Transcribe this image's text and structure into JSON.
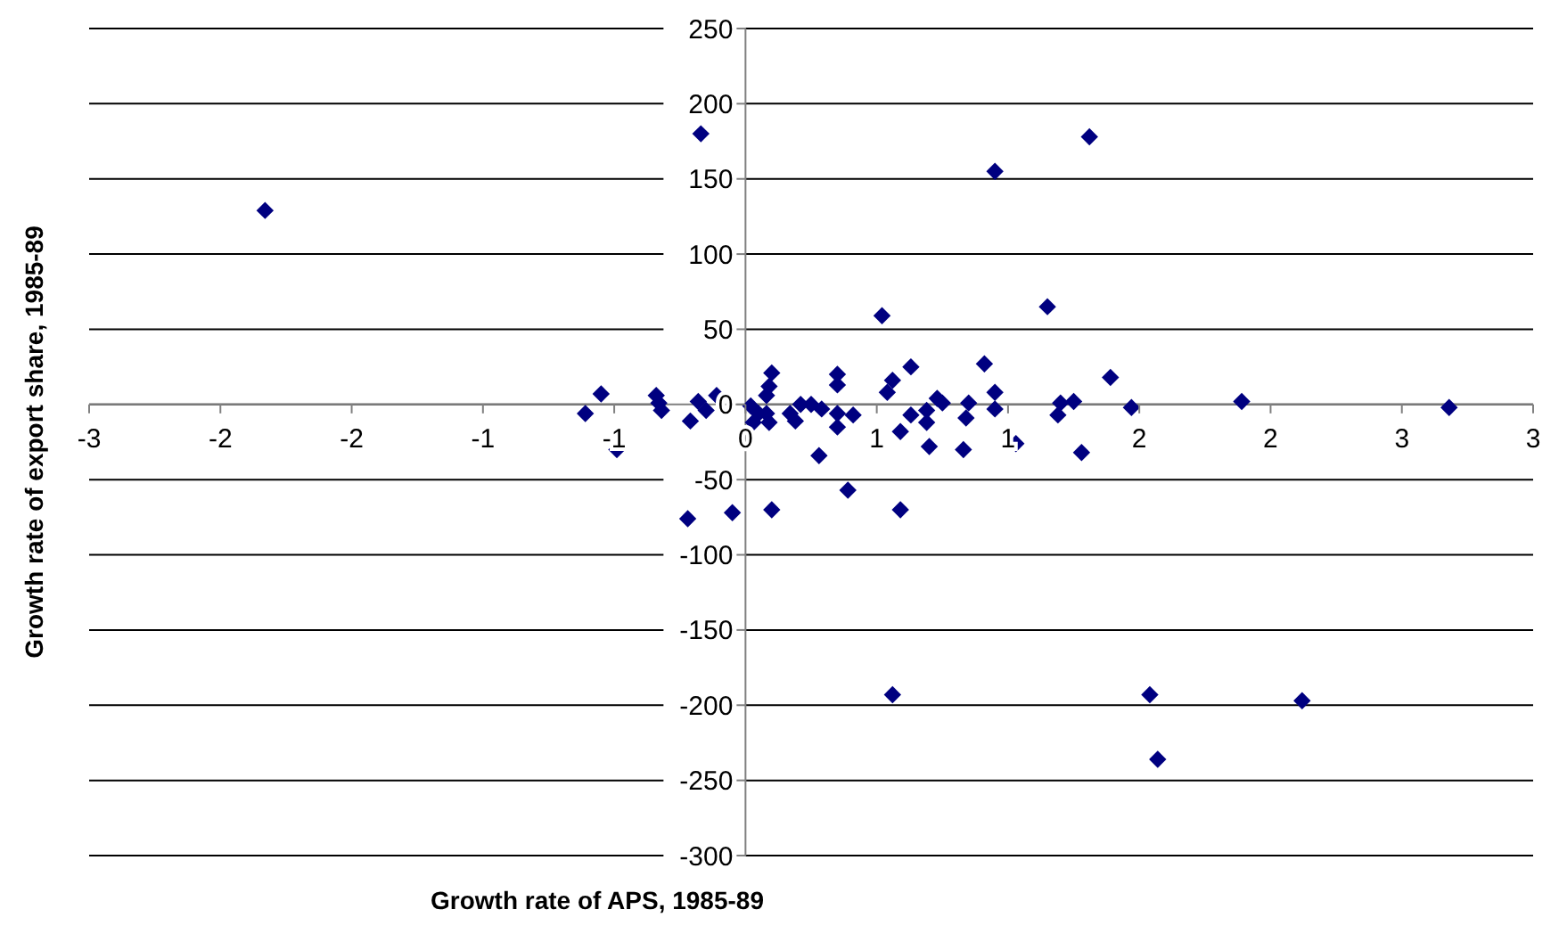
{
  "chart_data": {
    "type": "scatter",
    "xlabel": "Growth rate of APS, 1985-89",
    "ylabel": "Growth rate of export share, 1985-89",
    "xlim": [
      -2.5,
      3
    ],
    "ylim": [
      -300,
      250
    ],
    "xticks": [
      {
        "value": -2.5,
        "label": "-3"
      },
      -2,
      {
        "value": -1.5,
        "label": "-2"
      },
      -1,
      {
        "value": -0.5,
        "label": "-1"
      },
      0,
      {
        "value": 0.5,
        "label": "1"
      },
      1,
      {
        "value": 1.5,
        "label": "2"
      },
      2,
      {
        "value": 2.5,
        "label": "3"
      },
      3
    ],
    "yticks": [
      -300,
      -250,
      -200,
      -150,
      -100,
      -50,
      0,
      50,
      100,
      150,
      200,
      250
    ],
    "grid": "y",
    "marker": "diamond",
    "series": [
      {
        "color": "#000080",
        "x": [
          -1.83,
          -0.17,
          0.95,
          1.31,
          0.52,
          1.15,
          -0.61,
          -0.55,
          -0.49,
          -0.34,
          -0.33,
          -0.32,
          -0.21,
          -0.18,
          -0.15,
          -0.11,
          0.02,
          0.03,
          0.05,
          0.08,
          0.09,
          0.08,
          0.09,
          0.1,
          0.17,
          0.19,
          0.21,
          0.25,
          0.28,
          0.29,
          0.35,
          0.35,
          0.35,
          0.35,
          0.41,
          0.39,
          0.54,
          0.56,
          0.59,
          0.59,
          0.63,
          0.63,
          0.69,
          0.69,
          0.7,
          0.73,
          0.75,
          0.83,
          0.85,
          0.84,
          0.91,
          0.95,
          0.95,
          1.03,
          1.19,
          1.2,
          1.25,
          1.28,
          1.39,
          1.47,
          1.89,
          2.68,
          -0.22,
          -0.05,
          0.1,
          0.56,
          1.54,
          1.57,
          2.12
        ],
        "values": [
          129,
          180,
          155,
          178,
          59,
          65,
          -6,
          7,
          -30,
          6,
          1,
          -4,
          -11,
          2,
          -4,
          6,
          -1,
          -12,
          -6,
          -6,
          -12,
          6,
          12,
          21,
          -6,
          -11,
          0,
          0,
          -34,
          -3,
          13,
          20,
          -6,
          -15,
          -7,
          -57,
          8,
          16,
          -18,
          -70,
          25,
          -7,
          -4,
          -12,
          -28,
          4,
          1,
          -30,
          1,
          -9,
          27,
          8,
          -3,
          -26,
          -7,
          1,
          2,
          -32,
          18,
          -2,
          2,
          -2,
          -76,
          -72,
          -70,
          -193,
          -193,
          -236,
          -197
        ]
      }
    ]
  }
}
